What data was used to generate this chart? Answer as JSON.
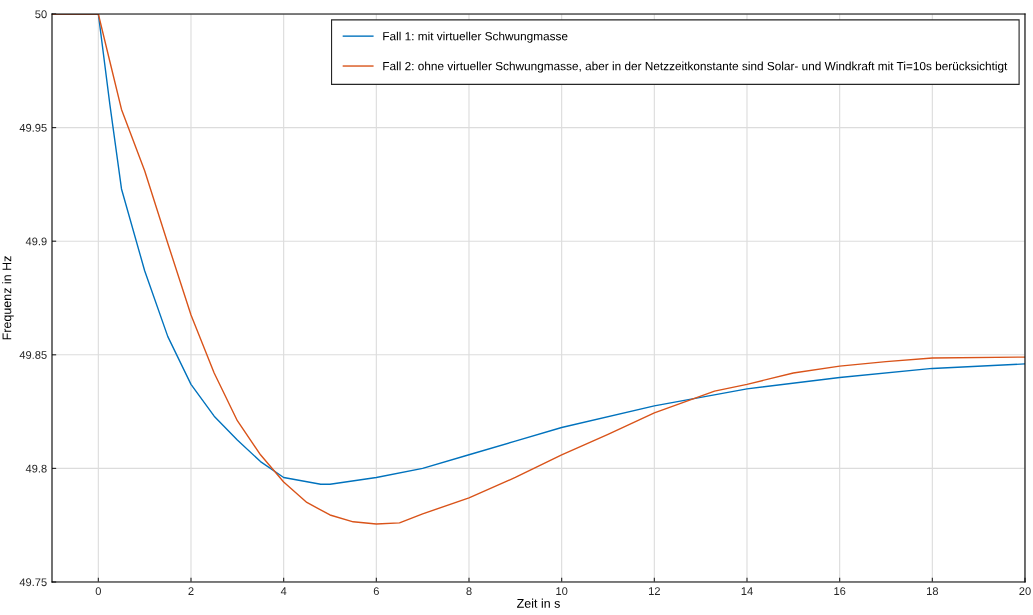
{
  "chart_data": {
    "type": "line",
    "xlabel": "Zeit in s",
    "ylabel": "Frequenz in Hz",
    "xlim": [
      -1,
      20
    ],
    "ylim": [
      49.75,
      50
    ],
    "xticks": [
      0,
      2,
      4,
      6,
      8,
      10,
      12,
      14,
      16,
      18,
      20
    ],
    "yticks": [
      49.75,
      49.8,
      49.85,
      49.9,
      49.95,
      50
    ],
    "grid": true,
    "legend": "top right",
    "series": [
      {
        "name": "Fall 1: mit virtueller Schwungmasse",
        "color": "#0072bd",
        "x": [
          -1,
          0,
          0.25,
          0.5,
          1,
          1.5,
          2,
          2.5,
          3,
          3.5,
          4,
          4.8,
          5,
          6,
          7,
          8,
          9,
          10,
          12,
          14,
          16,
          18,
          20
        ],
        "values": [
          50,
          50,
          49.96,
          49.923,
          49.887,
          49.858,
          49.837,
          49.823,
          49.8125,
          49.803,
          49.796,
          49.793,
          49.793,
          49.796,
          49.8,
          49.806,
          49.812,
          49.818,
          49.8275,
          49.835,
          49.84,
          49.844,
          49.846
        ]
      },
      {
        "name": "Fall 2: ohne virtueller Schwungmasse, aber in der Netzzeitkonstante sind Solar- und Windkraft mit Ti=10s berücksichtigt",
        "color": "#d95319",
        "x": [
          -1,
          0,
          0.25,
          0.5,
          1,
          1.5,
          2,
          2.5,
          3,
          3.5,
          4,
          4.5,
          5,
          5.5,
          6,
          6.5,
          7,
          8,
          9,
          10,
          11,
          12,
          13.3,
          14,
          15,
          16,
          17,
          18,
          20
        ],
        "values": [
          50,
          50,
          49.979,
          49.958,
          49.931,
          49.899,
          49.8675,
          49.842,
          49.821,
          49.806,
          49.794,
          49.785,
          49.7795,
          49.7765,
          49.7755,
          49.776,
          49.78,
          49.787,
          49.796,
          49.806,
          49.815,
          49.8244,
          49.834,
          49.837,
          49.842,
          49.845,
          49.847,
          49.8486,
          49.849
        ]
      }
    ]
  }
}
